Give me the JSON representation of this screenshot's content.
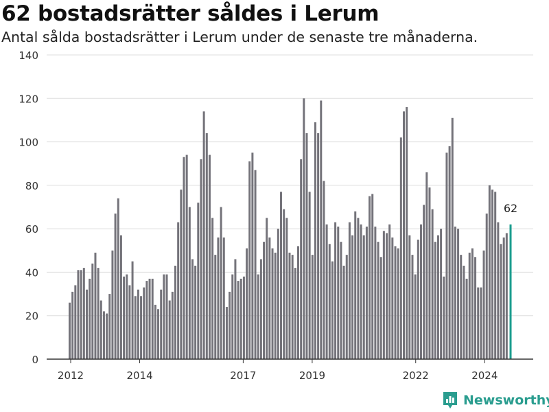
{
  "header": {
    "title": "62 bostadsrätter såldes i Lerum",
    "subtitle": "Antal sålda bostadsrätter i Lerum under de senaste tre månaderna."
  },
  "brand": {
    "name": "Newsworthy",
    "color": "#2a9d8f"
  },
  "colors": {
    "bar": "#74737a",
    "highlight": "#1a9c8e",
    "grid": "#dddddd",
    "axis": "#333333"
  },
  "chart_data": {
    "type": "bar",
    "title": "",
    "xlabel": "",
    "ylabel": "",
    "ylim": [
      0,
      140
    ],
    "y_ticks": [
      0,
      20,
      40,
      60,
      80,
      100,
      120,
      140
    ],
    "grid": true,
    "x_range": [
      2012.0,
      2024.75
    ],
    "x_tick_labels": [
      {
        "label": "2012",
        "at": 2012.0
      },
      {
        "label": "2014",
        "at": 2014.0
      },
      {
        "label": "2017",
        "at": 2017.0
      },
      {
        "label": "2019",
        "at": 2019.0
      },
      {
        "label": "2022",
        "at": 2022.0
      },
      {
        "label": "2024",
        "at": 2024.0
      }
    ],
    "x_start": 2012.0,
    "x_step": 0.0833,
    "values": [
      26,
      31,
      34,
      41,
      41,
      42,
      32,
      37,
      44,
      49,
      42,
      27,
      22,
      21,
      30,
      50,
      67,
      74,
      57,
      38,
      39,
      34,
      45,
      29,
      32,
      29,
      33,
      36,
      37,
      37,
      25,
      23,
      32,
      39,
      39,
      27,
      31,
      43,
      63,
      78,
      93,
      94,
      70,
      46,
      43,
      72,
      92,
      114,
      104,
      94,
      65,
      48,
      56,
      70,
      56,
      24,
      31,
      39,
      46,
      36,
      37,
      38,
      51,
      91,
      95,
      87,
      39,
      46,
      54,
      65,
      56,
      51,
      49,
      60,
      77,
      69,
      65,
      49,
      48,
      42,
      52,
      92,
      120,
      104,
      77,
      48,
      109,
      104,
      119,
      82,
      62,
      53,
      45,
      63,
      61,
      54,
      43,
      48,
      63,
      57,
      68,
      65,
      62,
      57,
      61,
      75,
      76,
      61,
      54,
      47,
      59,
      58,
      62,
      56,
      52,
      51,
      102,
      114,
      116,
      57,
      48,
      39,
      55,
      62,
      71,
      86,
      79,
      69,
      54,
      57,
      60,
      38,
      95,
      98,
      111,
      61,
      60,
      48,
      43,
      37,
      49,
      51,
      47,
      33,
      33,
      50,
      67,
      80,
      78,
      77,
      63,
      53,
      56,
      58,
      62
    ],
    "highlight_index": 154,
    "highlight_label": "62"
  }
}
